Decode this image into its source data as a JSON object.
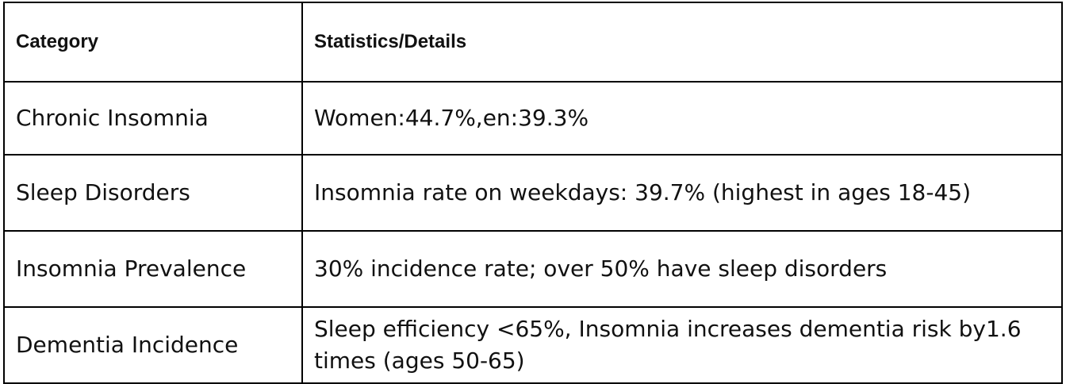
{
  "table": {
    "headers": [
      "Category",
      "Statistics/Details"
    ],
    "rows": [
      [
        "Chronic Insomnia",
        "Women:44.7%,en:39.3%"
      ],
      [
        "Sleep Disorders",
        "Insomnia rate on weekdays: 39.7% (highest in ages 18-45)"
      ],
      [
        "Insomnia Prevalence",
        "30% incidence rate; over 50% have sleep disorders"
      ],
      [
        "Dementia Incidence",
        "Sleep efficiency <65%, Insomnia increases dementia risk by1.6 times (ages 50-65)"
      ]
    ]
  }
}
